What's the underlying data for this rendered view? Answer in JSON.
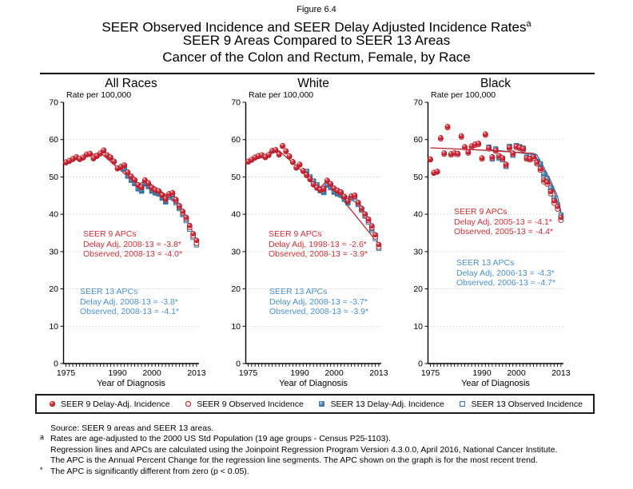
{
  "figure_label": "Figure 6.4",
  "title": {
    "line1": "SEER Observed Incidence and SEER Delay Adjusted Incidence Rates",
    "sup": "a",
    "line2": "SEER 9 Areas Compared to SEER 13 Areas",
    "line3": "Cancer of the Colon and Rectum, Female, by Race"
  },
  "colors": {
    "seer9_red": "#c4212e",
    "seer9_red_dark": "#a50f1c",
    "seer13_blue": "#3977a6",
    "seer13_blue_dark": "#245d84",
    "apc_red_text": "#cf3038",
    "apc_blue_text": "#4b90c8",
    "grid": "#cfcfcf",
    "axis": "#000000"
  },
  "chart_data": [
    {
      "type": "scatter",
      "title": "All Races",
      "ylabel": "Rate per 100,000",
      "xlabel": "Year of Diagnosis",
      "ylim": [
        0,
        70
      ],
      "y_ticks": [
        0,
        10,
        20,
        30,
        40,
        50,
        60,
        70
      ],
      "x_range": [
        1975,
        2013
      ],
      "x_ticks": [
        1975,
        1990,
        2000,
        2013
      ],
      "grid": true,
      "series": [
        {
          "name": "SEER 9 Delay-Adj. Incidence",
          "start_year": 1975,
          "values": [
            54.0,
            54.4,
            54.9,
            55.4,
            54.9,
            55.3,
            56.1,
            56.3,
            55.1,
            55.7,
            56.4,
            57.2,
            55.9,
            55.3,
            54.2,
            52.4,
            52.8,
            53.2,
            51.3,
            50.2,
            49.3,
            47.9,
            47.3,
            49.2,
            48.4,
            47.2,
            46.6,
            46.3,
            45.2,
            44.2,
            45.5,
            45.8,
            44.0,
            42.3,
            40.8,
            39.2,
            37.0,
            34.8,
            33.0
          ]
        },
        {
          "name": "SEER 9 Observed Incidence",
          "start_year": 1975,
          "values": [
            53.8,
            54.2,
            54.7,
            55.2,
            54.7,
            55.1,
            55.9,
            56.1,
            54.9,
            55.5,
            56.2,
            57.0,
            55.7,
            55.1,
            54.0,
            52.2,
            52.6,
            53.0,
            51.1,
            50.0,
            49.1,
            47.7,
            47.1,
            49.0,
            48.2,
            47.0,
            46.4,
            46.1,
            45.0,
            44.0,
            45.2,
            45.5,
            43.7,
            42.0,
            40.4,
            38.8,
            36.5,
            34.2,
            32.2
          ]
        },
        {
          "name": "SEER 13 Delay-Adj. Incidence",
          "start_year": 1992,
          "values": [
            52.2,
            50.4,
            49.3,
            48.4,
            47.0,
            46.4,
            48.3,
            47.6,
            46.4,
            45.9,
            45.6,
            44.5,
            43.5,
            44.9,
            45.2,
            43.4,
            41.8,
            40.2,
            38.7,
            36.5,
            34.4,
            32.7
          ]
        },
        {
          "name": "SEER 13 Observed Incidence",
          "start_year": 1992,
          "values": [
            52.0,
            50.2,
            49.1,
            48.2,
            46.8,
            46.2,
            48.1,
            47.4,
            46.2,
            45.7,
            45.4,
            44.3,
            43.3,
            44.6,
            44.9,
            43.1,
            41.5,
            39.9,
            38.3,
            36.0,
            33.8,
            31.8
          ]
        }
      ],
      "trend_lines": [
        {
          "name": "SEER 9 regression",
          "points": [
            [
              1975,
              54.3
            ],
            [
              1985,
              56.5
            ],
            [
              1996,
              47.7
            ],
            [
              1998,
              49.1
            ],
            [
              2008,
              42.7
            ],
            [
              2013,
              33.0
            ]
          ]
        },
        {
          "name": "SEER 13 regression",
          "points": [
            [
              1992,
              51.8
            ],
            [
              1996,
              47.0
            ],
            [
              1998,
              48.5
            ],
            [
              2008,
              42.4
            ],
            [
              2013,
              32.4
            ]
          ]
        }
      ],
      "apc9": {
        "title": "SEER 9 APCs",
        "line1": "Delay Adj, 2008-13 = -3.8*",
        "line2": "Observed, 2008-13 = -4.0*"
      },
      "apc13": {
        "title": "SEER 13 APCs",
        "line1": "Delay Adj, 2008-13 = -3.8*",
        "line2": "Observed, 2008-13 = -4.1*"
      }
    },
    {
      "type": "scatter",
      "title": "White",
      "ylabel": "Rate per 100,000",
      "xlabel": "Year of Diagnosis",
      "ylim": [
        0,
        70
      ],
      "y_ticks": [
        0,
        10,
        20,
        30,
        40,
        50,
        60,
        70
      ],
      "x_range": [
        1975,
        2013
      ],
      "x_ticks": [
        1975,
        1990,
        2000,
        2013
      ],
      "grid": true,
      "series": [
        {
          "name": "SEER 9 Delay-Adj. Incidence",
          "start_year": 1975,
          "values": [
            54.2,
            54.7,
            55.3,
            55.7,
            55.9,
            55.4,
            56.0,
            57.1,
            57.3,
            56.1,
            58.4,
            57.0,
            55.6,
            54.1,
            52.6,
            53.4,
            51.7,
            50.6,
            49.5,
            48.1,
            47.2,
            46.6,
            46.9,
            49.1,
            48.2,
            47.0,
            46.4,
            46.0,
            44.8,
            43.6,
            44.9,
            45.1,
            43.2,
            41.6,
            40.1,
            38.7,
            36.9,
            34.5,
            31.9
          ]
        },
        {
          "name": "SEER 9 Observed Incidence",
          "start_year": 1975,
          "values": [
            54.0,
            54.5,
            55.1,
            55.5,
            55.7,
            55.2,
            55.8,
            56.9,
            57.1,
            55.9,
            58.2,
            56.8,
            55.4,
            53.9,
            52.4,
            53.2,
            51.5,
            50.4,
            49.3,
            47.9,
            47.0,
            46.4,
            46.7,
            48.9,
            48.0,
            46.8,
            46.2,
            45.8,
            44.6,
            43.4,
            44.6,
            44.8,
            42.9,
            41.3,
            39.7,
            38.3,
            36.4,
            33.9,
            31.2
          ]
        },
        {
          "name": "SEER 13 Delay-Adj. Incidence",
          "start_year": 1992,
          "values": [
            51.5,
            50.0,
            48.9,
            47.9,
            46.5,
            46.0,
            48.0,
            47.3,
            46.1,
            45.6,
            45.3,
            44.2,
            43.2,
            44.5,
            44.8,
            42.9,
            41.4,
            39.8,
            38.3,
            36.1,
            34.0,
            31.6
          ]
        },
        {
          "name": "SEER 13 Observed Incidence",
          "start_year": 1992,
          "values": [
            51.3,
            49.8,
            48.7,
            47.7,
            46.3,
            45.8,
            47.8,
            47.1,
            45.9,
            45.4,
            45.1,
            44.0,
            43.0,
            44.2,
            44.5,
            42.6,
            41.1,
            39.5,
            37.9,
            35.7,
            33.5,
            30.9
          ]
        }
      ],
      "trend_lines": [
        {
          "name": "SEER 9 regression",
          "points": [
            [
              1975,
              54.6
            ],
            [
              1984,
              57.0
            ],
            [
              1996,
              47.2
            ],
            [
              1998,
              49.0
            ],
            [
              2013,
              32.0
            ]
          ]
        },
        {
          "name": "SEER 13 regression",
          "points": [
            [
              1992,
              51.3
            ],
            [
              1996,
              46.7
            ],
            [
              1998,
              48.2
            ],
            [
              2008,
              42.2
            ],
            [
              2013,
              31.7
            ]
          ]
        }
      ],
      "apc9": {
        "title": "SEER 9 APCs",
        "line1": "Delay Adj, 1998-13 = -2.6*",
        "line2": "Observed, 2008-13 = -3.9*"
      },
      "apc13": {
        "title": "SEER 13 APCs",
        "line1": "Delay Adj, 2008-13 = -3.7*",
        "line2": "Observed, 2008-13 = -3.9*"
      }
    },
    {
      "type": "scatter",
      "title": "Black",
      "ylabel": "Rate per 100,000",
      "xlabel": "Year of Diagnosis",
      "ylim": [
        0,
        70
      ],
      "y_ticks": [
        0,
        10,
        20,
        30,
        40,
        50,
        60,
        70
      ],
      "x_range": [
        1975,
        2013
      ],
      "x_ticks": [
        1975,
        1990,
        2000,
        2013
      ],
      "grid": true,
      "series": [
        {
          "name": "SEER 9 Delay-Adj. Incidence",
          "start_year": 1975,
          "values": [
            54.8,
            51.2,
            51.5,
            60.5,
            56.4,
            63.5,
            56.2,
            56.5,
            56.3,
            61.0,
            58.1,
            56.7,
            58.3,
            58.8,
            59.0,
            55.1,
            61.5,
            57.8,
            55.4,
            57.2,
            55.7,
            55.1,
            53.4,
            57.9,
            56.4,
            58.2,
            57.9,
            57.6,
            55.1,
            54.9,
            55.4,
            53.9,
            52.2,
            49.2,
            48.6,
            46.1,
            43.6,
            42.1,
            39.2
          ]
        },
        {
          "name": "SEER 9 Observed Incidence",
          "start_year": 1975,
          "values": [
            54.6,
            51.0,
            51.3,
            60.2,
            56.1,
            63.2,
            55.9,
            56.2,
            56.0,
            60.7,
            57.8,
            56.4,
            58.0,
            58.5,
            58.7,
            54.8,
            61.2,
            57.5,
            55.1,
            56.9,
            55.4,
            54.8,
            53.1,
            57.6,
            56.1,
            57.9,
            57.6,
            57.3,
            54.8,
            54.6,
            55.0,
            53.5,
            51.8,
            48.7,
            48.1,
            45.5,
            43.0,
            41.4,
            38.4
          ]
        },
        {
          "name": "SEER 13 Delay-Adj. Incidence",
          "start_year": 1992,
          "values": [
            58.0,
            55.1,
            57.5,
            55.3,
            54.9,
            53.1,
            58.2,
            56.1,
            58.4,
            58.1,
            57.7,
            55.3,
            55.0,
            55.6,
            54.2,
            53.5,
            50.8,
            49.5,
            47.0,
            44.3,
            42.5,
            39.8
          ]
        },
        {
          "name": "SEER 13 Observed Incidence",
          "start_year": 1992,
          "values": [
            57.7,
            54.8,
            57.2,
            55.0,
            54.6,
            52.8,
            57.9,
            55.8,
            58.1,
            57.8,
            57.4,
            55.0,
            54.7,
            55.2,
            53.8,
            53.1,
            50.3,
            49.0,
            46.4,
            43.7,
            41.8,
            38.9
          ]
        }
      ],
      "trend_lines": [
        {
          "name": "SEER 9 regression",
          "points": [
            [
              1975,
              57.8
            ],
            [
              1990,
              57.2
            ],
            [
              2005,
              56.3
            ],
            [
              2007,
              53.6
            ],
            [
              2009,
              50.0
            ],
            [
              2011,
              46.2
            ],
            [
              2013,
              40.0
            ]
          ]
        },
        {
          "name": "SEER 13 regression",
          "points": [
            [
              1992,
              57.4
            ],
            [
              2006,
              55.9
            ],
            [
              2008,
              52.6
            ],
            [
              2010,
              49.0
            ],
            [
              2012,
              44.8
            ],
            [
              2013,
              40.6
            ]
          ]
        }
      ],
      "apc9": {
        "title": "SEER 9 APCs",
        "line1": "Delay Adj, 2005-13 = -4.1*",
        "line2": "Observed, 2005-13 = -4.4*"
      },
      "apc13": {
        "title": "SEER 13 APCs",
        "line1": "Delay Adj, 2006-13 = -4.3*",
        "line2": "Observed, 2006-13 = -4.7*"
      }
    }
  ],
  "legend": {
    "items": [
      {
        "label": "SEER 9 Delay-Adj. Incidence",
        "marker": "red-filled-circle"
      },
      {
        "label": "SEER 9 Observed Incidence",
        "marker": "red-open-circle"
      },
      {
        "label": "SEER 13 Delay-Adj. Incidence",
        "marker": "blue-filled-square"
      },
      {
        "label": "SEER 13 Observed Incidence",
        "marker": "blue-open-square"
      }
    ]
  },
  "footnotes": [
    {
      "marker": "",
      "text": "Source: SEER 9 areas and SEER 13 areas."
    },
    {
      "marker": "a",
      "text": "Rates are age-adjusted to the 2000 US Std Population (19 age groups - Census P25-1103)."
    },
    {
      "marker": "",
      "text": "Regression lines and APCs are calculated using the Joinpoint Regression Program Version 4.3.0.0, April 2016, National Cancer Institute."
    },
    {
      "marker": "",
      "text": "The APC is the Annual Percent Change for the regression line segments. The APC shown on the graph is for the most recent trend."
    },
    {
      "marker": "*",
      "text": "The APC is significantly different from zero (p < 0.05)."
    }
  ]
}
